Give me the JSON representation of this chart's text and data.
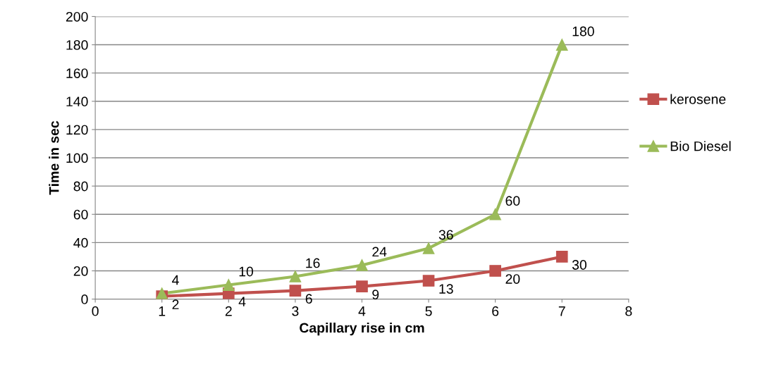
{
  "chart_data": {
    "type": "line",
    "xlabel": "Capillary rise in cm",
    "ylabel": "Time in sec",
    "x": [
      1,
      2,
      3,
      4,
      5,
      6,
      7
    ],
    "series": [
      {
        "name": "kerosene",
        "color": "#c0504d",
        "marker": "square",
        "values": [
          2,
          4,
          6,
          9,
          13,
          20,
          30
        ]
      },
      {
        "name": "Bio Diesel",
        "color": "#9bbb59",
        "marker": "triangle",
        "values": [
          4,
          10,
          16,
          24,
          36,
          60,
          180
        ]
      }
    ],
    "xlim": [
      0,
      8
    ],
    "xticks": [
      0,
      1,
      2,
      3,
      4,
      5,
      6,
      7,
      8
    ],
    "ylim": [
      0,
      200
    ],
    "yticks": [
      0,
      20,
      40,
      60,
      80,
      100,
      120,
      140,
      160,
      180,
      200
    ],
    "grid": "y",
    "legend": "right",
    "data_labels": true,
    "line_style": "solid"
  }
}
